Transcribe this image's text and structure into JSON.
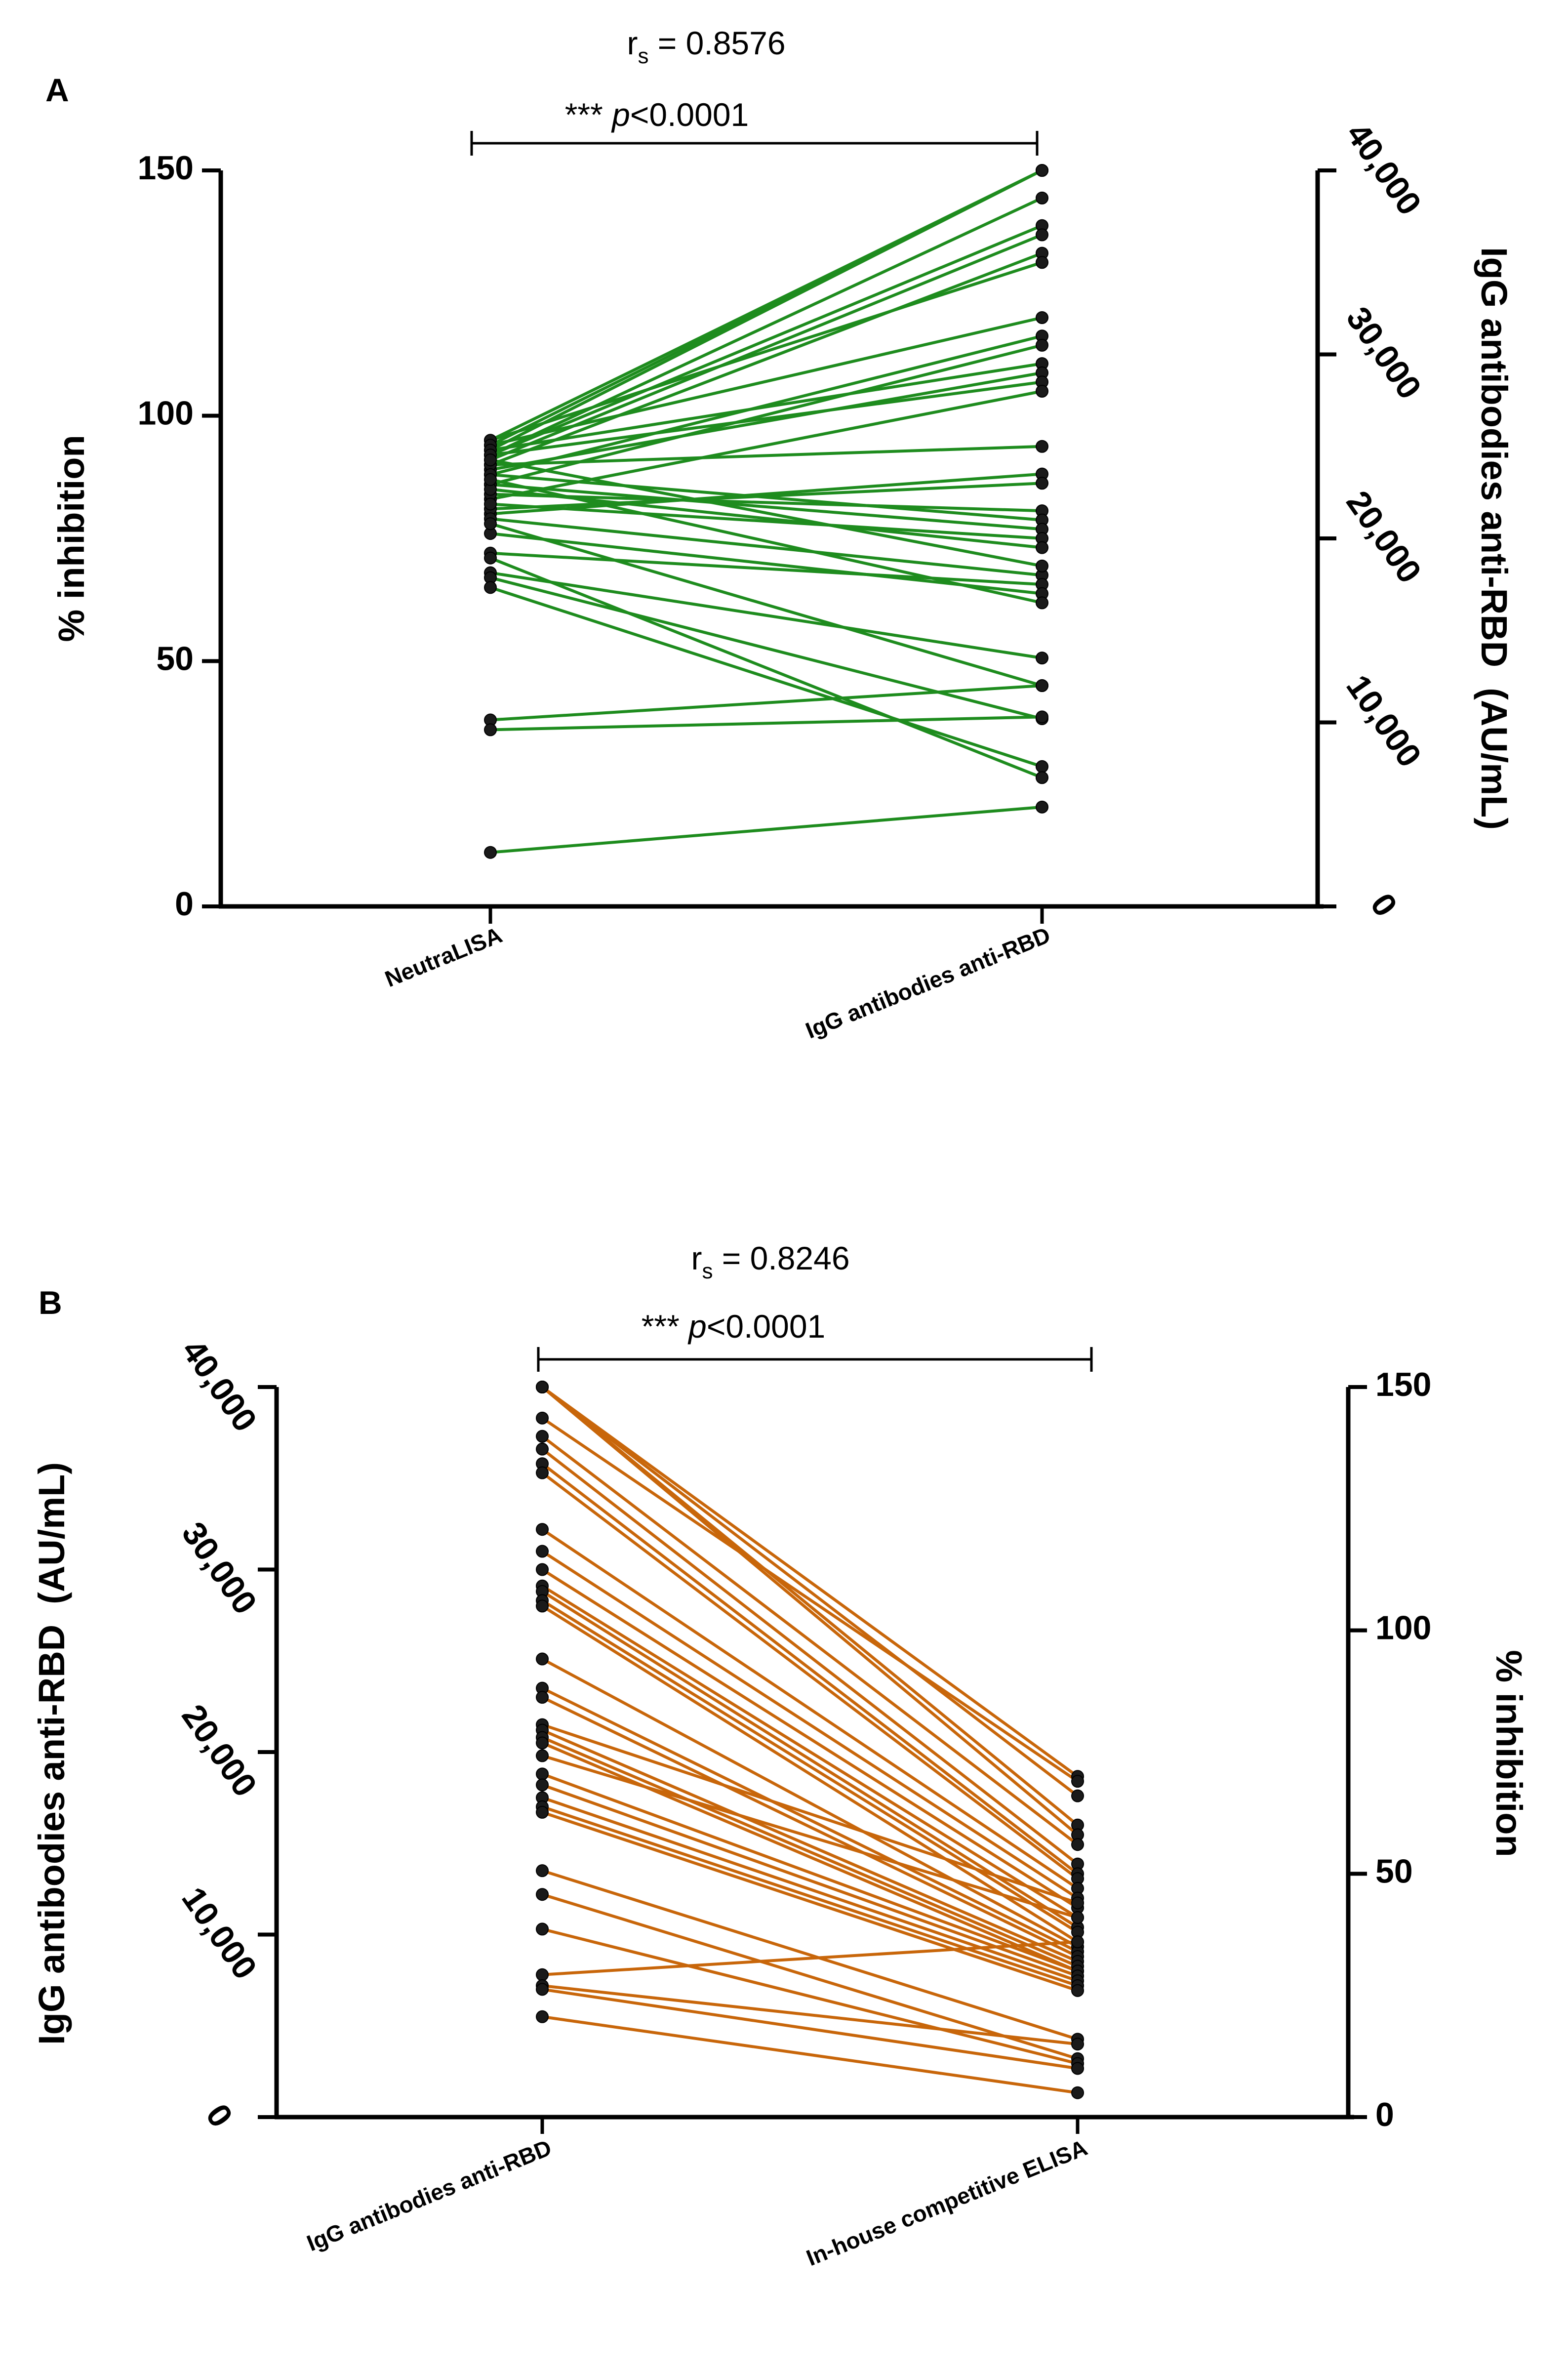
{
  "chart_data": [
    {
      "panel": "A",
      "type": "line",
      "title": "r_s = 0.8576",
      "correlation": {
        "symbol": "r",
        "subscript": "s",
        "equals": " = ",
        "value": "0.8576"
      },
      "significance": {
        "stars": "*** ",
        "p_symbol": "p",
        "p_text": "<0.0001"
      },
      "categories": [
        "NeutraLISA",
        "IgG antibodies anti-RBD"
      ],
      "left_axis": {
        "label": "% inhibition",
        "ylim": [
          0,
          150
        ],
        "ticks": [
          0,
          50,
          100,
          150
        ],
        "tick_labels": [
          "0",
          "50",
          "100",
          "150"
        ]
      },
      "right_axis": {
        "label": "IgG antibodies anti-RBD  (AU/mL)",
        "ylim": [
          0,
          40000
        ],
        "ticks": [
          0,
          10000,
          20000,
          30000,
          40000
        ],
        "tick_labels": [
          "0",
          "10,000",
          "20,000",
          "30,000",
          "40,000"
        ]
      },
      "line_color": "#1e8c1e",
      "series_note": "paired values: left value in % inhibition, right value in AU/mL",
      "pairs": [
        [
          95,
          40000
        ],
        [
          94,
          40000
        ],
        [
          93,
          40000
        ],
        [
          92,
          38500
        ],
        [
          92,
          37000
        ],
        [
          91,
          36500
        ],
        [
          90,
          35500
        ],
        [
          95,
          35000
        ],
        [
          94,
          32000
        ],
        [
          88,
          31000
        ],
        [
          86,
          30500
        ],
        [
          93,
          29500
        ],
        [
          89,
          29000
        ],
        [
          92,
          28500
        ],
        [
          83,
          28000
        ],
        [
          90,
          25000
        ],
        [
          80,
          23500
        ],
        [
          81,
          23000
        ],
        [
          84,
          21500
        ],
        [
          88,
          21000
        ],
        [
          86,
          20500
        ],
        [
          82,
          20000
        ],
        [
          85,
          19500
        ],
        [
          79,
          18000
        ],
        [
          91,
          18500
        ],
        [
          72,
          17500
        ],
        [
          76,
          17000
        ],
        [
          87,
          16500
        ],
        [
          68,
          13500
        ],
        [
          78,
          12000
        ],
        [
          38,
          12000
        ],
        [
          67,
          10200
        ],
        [
          65,
          7600
        ],
        [
          71,
          7000
        ],
        [
          36,
          10300
        ],
        [
          11,
          5400
        ]
      ]
    },
    {
      "panel": "B",
      "type": "line",
      "title": "r_s = 0.8246",
      "correlation": {
        "symbol": "r",
        "subscript": "s",
        "equals": " = ",
        "value": "0.8246"
      },
      "significance": {
        "stars": "*** ",
        "p_symbol": "p",
        "p_text": "<0.0001"
      },
      "categories": [
        "IgG antibodies anti-RBD",
        "In-house competitive ELISA"
      ],
      "left_axis": {
        "label": "IgG antibodies anti-RBD  (AU/mL)",
        "ylim": [
          0,
          40000
        ],
        "ticks": [
          0,
          10000,
          20000,
          30000,
          40000
        ],
        "tick_labels": [
          "0",
          "10,000",
          "20,000",
          "30,000",
          "40,000"
        ]
      },
      "right_axis": {
        "label": "% inhibition",
        "ylim": [
          0,
          150
        ],
        "ticks": [
          0,
          50,
          100,
          150
        ],
        "tick_labels": [
          "0",
          "50",
          "100",
          "150"
        ]
      },
      "line_color": "#c8660a",
      "series_note": "paired values: left value in AU/mL, right value in % inhibition",
      "pairs": [
        [
          40000,
          70
        ],
        [
          40000,
          66
        ],
        [
          40000,
          60
        ],
        [
          40000,
          58
        ],
        [
          38300,
          69
        ],
        [
          37300,
          56
        ],
        [
          36600,
          52
        ],
        [
          35800,
          50
        ],
        [
          35300,
          49
        ],
        [
          32200,
          47
        ],
        [
          31000,
          45
        ],
        [
          30000,
          43
        ],
        [
          29100,
          41
        ],
        [
          28800,
          39
        ],
        [
          28300,
          38
        ],
        [
          28000,
          36
        ],
        [
          25100,
          35
        ],
        [
          23500,
          34
        ],
        [
          23000,
          33
        ],
        [
          21500,
          44
        ],
        [
          21200,
          32
        ],
        [
          20800,
          31
        ],
        [
          20500,
          30
        ],
        [
          19800,
          41
        ],
        [
          18800,
          30
        ],
        [
          18200,
          29
        ],
        [
          17500,
          28
        ],
        [
          17000,
          27
        ],
        [
          16700,
          26
        ],
        [
          13500,
          16
        ],
        [
          12200,
          12
        ],
        [
          10300,
          11
        ],
        [
          7800,
          36
        ],
        [
          7200,
          15
        ],
        [
          7000,
          10
        ],
        [
          5500,
          5
        ]
      ]
    }
  ]
}
